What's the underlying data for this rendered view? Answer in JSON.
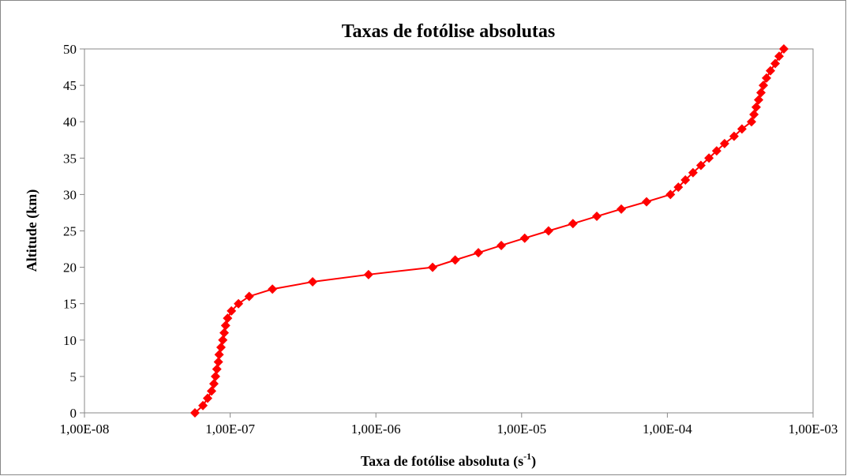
{
  "chart_data": {
    "type": "line",
    "title": "Taxas de fotólise absolutas",
    "xlabel": [
      "Taxa de fotólise absoluta (s",
      "-1",
      ")"
    ],
    "ylabel": "Altitude (km)",
    "xscale": "log",
    "xlim": [
      1e-08,
      0.001
    ],
    "xticks": [
      {
        "value": 1e-08,
        "label": "1,00E-08"
      },
      {
        "value": 1e-07,
        "label": "1,00E-07"
      },
      {
        "value": 1e-06,
        "label": "1,00E-06"
      },
      {
        "value": 1e-05,
        "label": "1,00E-05"
      },
      {
        "value": 0.0001,
        "label": "1,00E-04"
      },
      {
        "value": 0.001,
        "label": "1,00E-03"
      }
    ],
    "ylim": [
      0,
      50
    ],
    "yticks": [
      0,
      5,
      10,
      15,
      20,
      25,
      30,
      35,
      40,
      45,
      50
    ],
    "grid": false,
    "x": [
      5.73e-08,
      6.5e-08,
      7e-08,
      7.45e-08,
      7.73e-08,
      7.93e-08,
      8.1e-08,
      8.3e-08,
      8.4e-08,
      8.65e-08,
      8.9e-08,
      9.1e-08,
      9.3e-08,
      9.6e-08,
      1.02e-07,
      1.14e-07,
      1.35e-07,
      1.95e-07,
      3.68e-07,
      8.9e-07,
      2.45e-06,
      3.5e-06,
      5.05e-06,
      7.25e-06,
      1.05e-05,
      1.53e-05,
      2.25e-05,
      3.28e-05,
      4.83e-05,
      7.2e-05,
      0.000105,
      0.000119,
      0.000133,
      0.00015,
      0.00017,
      0.000193,
      0.000218,
      0.000247,
      0.000287,
      0.000325,
      0.000378,
      0.000393,
      0.000407,
      0.000423,
      0.000439,
      0.000456,
      0.000479,
      0.00051,
      0.00055,
      0.000585,
      0.00063
    ],
    "series": [
      {
        "color": "#ff0000",
        "values": [
          0,
          1,
          2,
          3,
          4,
          5,
          6,
          7,
          8,
          9,
          10,
          11,
          12,
          13,
          14,
          15,
          16,
          17,
          18,
          19,
          20,
          21,
          22,
          23,
          24,
          25,
          26,
          27,
          28,
          29,
          30,
          31,
          32,
          33,
          34,
          35,
          36,
          37,
          38,
          39,
          40,
          41,
          42,
          43,
          44,
          45,
          46,
          47,
          48,
          49,
          50
        ]
      }
    ]
  }
}
